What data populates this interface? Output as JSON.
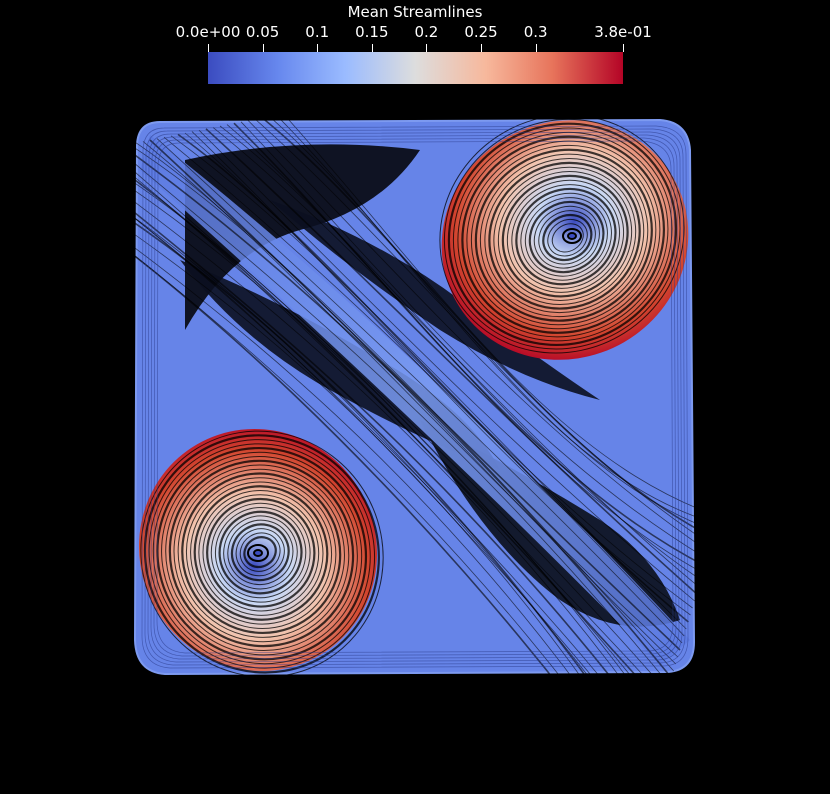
{
  "colorbar": {
    "title": "Mean Streamlines",
    "ticks": [
      {
        "label": "0.0e+00",
        "value": 0.0
      },
      {
        "label": "0.05",
        "value": 0.05
      },
      {
        "label": "0.1",
        "value": 0.1
      },
      {
        "label": "0.15",
        "value": 0.15
      },
      {
        "label": "0.2",
        "value": 0.2
      },
      {
        "label": "0.25",
        "value": 0.25
      },
      {
        "label": "0.3",
        "value": 0.3
      },
      {
        "label": "3.8e-01",
        "value": 0.38
      }
    ],
    "range": [
      0.0,
      0.38
    ],
    "colormap": [
      "#3b4cc0",
      "#7396f5",
      "#b0cbfc",
      "#dddddd",
      "#f6bfa6",
      "#ea7b60",
      "#b40426"
    ]
  },
  "background": "#000000"
}
